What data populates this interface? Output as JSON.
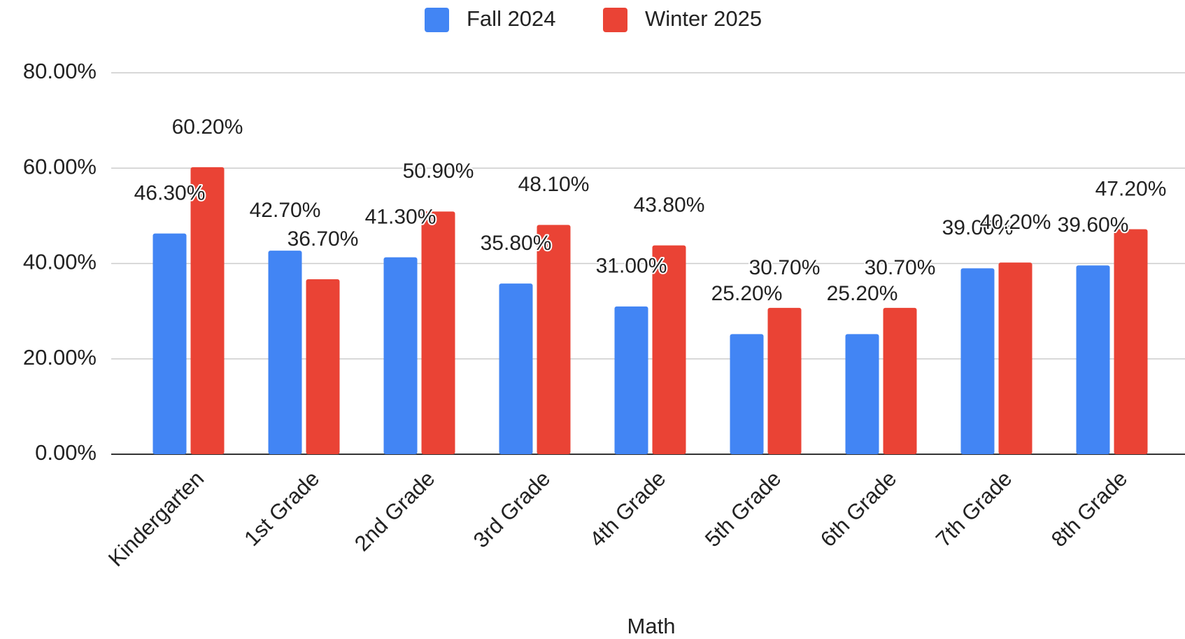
{
  "chart_data": {
    "type": "bar",
    "x_label": "Math",
    "categories": [
      "Kindergarten",
      "1st Grade",
      "2nd Grade",
      "3rd Grade",
      "4th Grade",
      "5th Grade",
      "6th Grade",
      "7th Grade",
      "8th Grade"
    ],
    "series": [
      {
        "name": "Fall 2024",
        "color": "#4285f4",
        "values": [
          46.3,
          42.7,
          41.3,
          35.8,
          31.0,
          25.2,
          25.2,
          39.0,
          39.6
        ],
        "value_labels": [
          "46.30%",
          "42.70%",
          "41.30%",
          "35.80%",
          "31.00%",
          "25.20%",
          "25.20%",
          "39.00%",
          "39.60%"
        ]
      },
      {
        "name": "Winter 2025",
        "color": "#ea4335",
        "values": [
          60.2,
          36.7,
          50.9,
          48.1,
          43.8,
          30.7,
          30.7,
          40.2,
          47.2
        ],
        "value_labels": [
          "60.20%",
          "36.70%",
          "50.90%",
          "48.10%",
          "43.80%",
          "30.70%",
          "30.70%",
          "40.20%",
          "47.20%"
        ]
      }
    ],
    "ylim": [
      0,
      80
    ],
    "yticks": [
      {
        "value": 0,
        "label": "0.00%"
      },
      {
        "value": 20,
        "label": "20.00%"
      },
      {
        "value": 40,
        "label": "40.00%"
      },
      {
        "value": 60,
        "label": "60.00%"
      },
      {
        "value": 80,
        "label": "80.00%"
      }
    ],
    "grid": true,
    "legend": "top"
  }
}
